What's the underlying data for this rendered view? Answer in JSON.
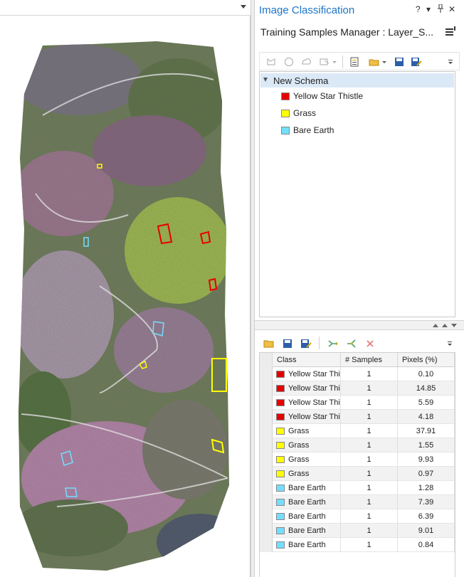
{
  "colors": {
    "accent": "#1d74c6",
    "yellow_star_thistle": "#e60000",
    "grass": "#ffff00",
    "bare_earth": "#73dfff",
    "tree_selected_row": "#dbe9f7"
  },
  "map": {
    "description_icon": "map-options-icon"
  },
  "panel": {
    "title": "Image Classification",
    "controls": {
      "help": "?",
      "menu": "▾",
      "pin": "📌",
      "close": "✕"
    },
    "subtitle": "Training Samples Manager : Layer_S...",
    "toolbar1": {
      "icons": [
        "rectangle-icon",
        "circle-icon",
        "polygon-icon",
        "freehand-icon",
        "create-schema-icon",
        "open-folder-icon",
        "save-icon",
        "save-as-icon"
      ]
    },
    "schema": {
      "name": "New Schema",
      "classes": [
        {
          "label": "Yellow Star Thistle",
          "color": "#e60000"
        },
        {
          "label": "Grass",
          "color": "#ffff00"
        },
        {
          "label": "Bare Earth",
          "color": "#73dfff"
        }
      ]
    },
    "toolbar2": {
      "icons": [
        "open-folder-icon",
        "save-icon",
        "save-as-icon",
        "merge-icon",
        "split-icon",
        "delete-icon"
      ]
    },
    "grid": {
      "columns": [
        "Class",
        "# Samples",
        "Pixels (%)"
      ],
      "rows": [
        {
          "class": "Yellow Star Thistle",
          "color": "#e60000",
          "samples": "1",
          "pixels": "0.10"
        },
        {
          "class": "Yellow Star Thistle",
          "color": "#e60000",
          "samples": "1",
          "pixels": "14.85"
        },
        {
          "class": "Yellow Star Thistle",
          "color": "#e60000",
          "samples": "1",
          "pixels": "5.59"
        },
        {
          "class": "Yellow Star Thistle",
          "color": "#e60000",
          "samples": "1",
          "pixels": "4.18"
        },
        {
          "class": "Grass",
          "color": "#ffff00",
          "samples": "1",
          "pixels": "37.91"
        },
        {
          "class": "Grass",
          "color": "#ffff00",
          "samples": "1",
          "pixels": "1.55"
        },
        {
          "class": "Grass",
          "color": "#ffff00",
          "samples": "1",
          "pixels": "9.93"
        },
        {
          "class": "Grass",
          "color": "#ffff00",
          "samples": "1",
          "pixels": "0.97"
        },
        {
          "class": "Bare Earth",
          "color": "#73dfff",
          "samples": "1",
          "pixels": "1.28"
        },
        {
          "class": "Bare Earth",
          "color": "#73dfff",
          "samples": "1",
          "pixels": "7.39"
        },
        {
          "class": "Bare Earth",
          "color": "#73dfff",
          "samples": "1",
          "pixels": "6.39"
        },
        {
          "class": "Bare Earth",
          "color": "#73dfff",
          "samples": "1",
          "pixels": "9.01"
        },
        {
          "class": "Bare Earth",
          "color": "#73dfff",
          "samples": "1",
          "pixels": "0.84"
        }
      ]
    }
  }
}
